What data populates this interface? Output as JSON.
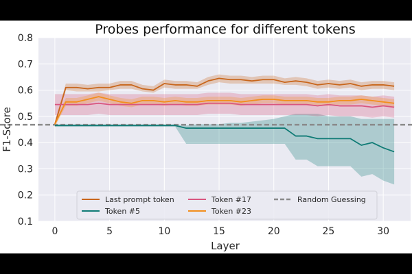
{
  "chart_data": {
    "type": "line",
    "title": "Probes performance for different tokens",
    "xlabel": "Layer",
    "ylabel": "F1-Score",
    "xlim": [
      -1.5,
      32.5
    ],
    "ylim": [
      0.1,
      0.8
    ],
    "xticks": [
      0,
      5,
      10,
      15,
      20,
      25,
      30
    ],
    "yticks": [
      0.1,
      0.2,
      0.3,
      0.4,
      0.5,
      0.6,
      0.7,
      0.8
    ],
    "grid": true,
    "legend_position": "bottom-center",
    "series": [
      {
        "name": "Last prompt token",
        "color": "#c8661c",
        "x": [
          0,
          1,
          2,
          3,
          4,
          5,
          6,
          7,
          8,
          9,
          10,
          11,
          12,
          13,
          14,
          15,
          16,
          17,
          18,
          19,
          20,
          21,
          22,
          23,
          24,
          25,
          26,
          27,
          28,
          29,
          30,
          31
        ],
        "values": [
          0.47,
          0.61,
          0.61,
          0.605,
          0.61,
          0.61,
          0.62,
          0.62,
          0.605,
          0.6,
          0.625,
          0.62,
          0.62,
          0.615,
          0.635,
          0.645,
          0.64,
          0.64,
          0.635,
          0.64,
          0.64,
          0.63,
          0.635,
          0.63,
          0.62,
          0.625,
          0.62,
          0.625,
          0.615,
          0.62,
          0.62,
          0.615
        ],
        "lower": [
          0.46,
          0.6,
          0.595,
          0.595,
          0.595,
          0.6,
          0.605,
          0.605,
          0.595,
          0.59,
          0.61,
          0.605,
          0.605,
          0.605,
          0.62,
          0.63,
          0.625,
          0.625,
          0.625,
          0.625,
          0.625,
          0.62,
          0.62,
          0.615,
          0.605,
          0.61,
          0.605,
          0.61,
          0.6,
          0.605,
          0.605,
          0.6
        ],
        "upper": [
          0.48,
          0.625,
          0.625,
          0.62,
          0.625,
          0.625,
          0.635,
          0.635,
          0.62,
          0.615,
          0.64,
          0.635,
          0.635,
          0.63,
          0.65,
          0.66,
          0.655,
          0.655,
          0.65,
          0.655,
          0.655,
          0.645,
          0.65,
          0.645,
          0.635,
          0.64,
          0.635,
          0.64,
          0.63,
          0.635,
          0.635,
          0.63
        ]
      },
      {
        "name": "Token #5",
        "color": "#0f7b75",
        "x": [
          0,
          1,
          2,
          3,
          4,
          5,
          6,
          7,
          8,
          9,
          10,
          11,
          12,
          13,
          14,
          15,
          16,
          17,
          18,
          19,
          20,
          21,
          22,
          23,
          24,
          25,
          26,
          27,
          28,
          29,
          30,
          31
        ],
        "values": [
          0.465,
          0.465,
          0.465,
          0.465,
          0.465,
          0.465,
          0.465,
          0.465,
          0.465,
          0.465,
          0.465,
          0.465,
          0.455,
          0.455,
          0.455,
          0.455,
          0.455,
          0.455,
          0.455,
          0.455,
          0.455,
          0.455,
          0.425,
          0.425,
          0.415,
          0.415,
          0.415,
          0.415,
          0.39,
          0.4,
          0.38,
          0.365
        ],
        "lower": [
          0.46,
          0.46,
          0.46,
          0.46,
          0.46,
          0.46,
          0.46,
          0.46,
          0.46,
          0.46,
          0.46,
          0.46,
          0.395,
          0.395,
          0.395,
          0.395,
          0.395,
          0.395,
          0.395,
          0.395,
          0.395,
          0.395,
          0.335,
          0.335,
          0.31,
          0.31,
          0.31,
          0.31,
          0.27,
          0.28,
          0.255,
          0.24
        ],
        "upper": [
          0.47,
          0.47,
          0.47,
          0.47,
          0.47,
          0.47,
          0.47,
          0.47,
          0.47,
          0.47,
          0.47,
          0.47,
          0.465,
          0.47,
          0.47,
          0.47,
          0.475,
          0.475,
          0.48,
          0.485,
          0.49,
          0.5,
          0.51,
          0.51,
          0.51,
          0.5,
          0.5,
          0.5,
          0.49,
          0.49,
          0.49,
          0.49
        ]
      },
      {
        "name": "Token #17",
        "color": "#d9557f",
        "x": [
          0,
          1,
          2,
          3,
          4,
          5,
          6,
          7,
          8,
          9,
          10,
          11,
          12,
          13,
          14,
          15,
          16,
          17,
          18,
          19,
          20,
          21,
          22,
          23,
          24,
          25,
          26,
          27,
          28,
          29,
          30,
          31
        ],
        "values": [
          0.545,
          0.545,
          0.545,
          0.545,
          0.55,
          0.545,
          0.545,
          0.545,
          0.545,
          0.545,
          0.545,
          0.545,
          0.545,
          0.545,
          0.55,
          0.55,
          0.55,
          0.545,
          0.545,
          0.545,
          0.545,
          0.545,
          0.545,
          0.545,
          0.54,
          0.545,
          0.54,
          0.54,
          0.54,
          0.535,
          0.54,
          0.535
        ],
        "lower": [
          0.505,
          0.505,
          0.505,
          0.505,
          0.51,
          0.505,
          0.505,
          0.505,
          0.505,
          0.505,
          0.505,
          0.505,
          0.505,
          0.505,
          0.51,
          0.51,
          0.51,
          0.505,
          0.505,
          0.505,
          0.505,
          0.505,
          0.505,
          0.505,
          0.5,
          0.505,
          0.5,
          0.5,
          0.5,
          0.495,
          0.5,
          0.495
        ],
        "upper": [
          0.585,
          0.585,
          0.585,
          0.585,
          0.59,
          0.585,
          0.585,
          0.585,
          0.585,
          0.585,
          0.585,
          0.585,
          0.585,
          0.585,
          0.59,
          0.59,
          0.59,
          0.585,
          0.585,
          0.585,
          0.585,
          0.585,
          0.585,
          0.585,
          0.58,
          0.585,
          0.58,
          0.58,
          0.58,
          0.575,
          0.58,
          0.575
        ]
      },
      {
        "name": "Token #23",
        "color": "#f28e1c",
        "x": [
          0,
          1,
          2,
          3,
          4,
          5,
          6,
          7,
          8,
          9,
          10,
          11,
          12,
          13,
          14,
          15,
          16,
          17,
          18,
          19,
          20,
          21,
          22,
          23,
          24,
          25,
          26,
          27,
          28,
          29,
          30,
          31
        ],
        "values": [
          0.47,
          0.555,
          0.555,
          0.565,
          0.575,
          0.565,
          0.555,
          0.55,
          0.56,
          0.56,
          0.555,
          0.56,
          0.555,
          0.555,
          0.56,
          0.56,
          0.56,
          0.555,
          0.56,
          0.565,
          0.565,
          0.56,
          0.56,
          0.56,
          0.555,
          0.555,
          0.56,
          0.56,
          0.565,
          0.56,
          0.555,
          0.55
        ],
        "lower": [
          0.46,
          0.54,
          0.54,
          0.55,
          0.56,
          0.55,
          0.54,
          0.535,
          0.545,
          0.545,
          0.54,
          0.545,
          0.54,
          0.54,
          0.545,
          0.545,
          0.545,
          0.54,
          0.545,
          0.55,
          0.55,
          0.545,
          0.545,
          0.545,
          0.54,
          0.54,
          0.545,
          0.545,
          0.55,
          0.545,
          0.54,
          0.535
        ],
        "upper": [
          0.48,
          0.57,
          0.57,
          0.58,
          0.59,
          0.58,
          0.57,
          0.565,
          0.575,
          0.575,
          0.57,
          0.575,
          0.57,
          0.57,
          0.575,
          0.575,
          0.575,
          0.57,
          0.575,
          0.58,
          0.58,
          0.575,
          0.575,
          0.575,
          0.57,
          0.57,
          0.575,
          0.575,
          0.58,
          0.575,
          0.57,
          0.565
        ]
      }
    ],
    "reference_line": {
      "name": "Random Guessing",
      "color": "#8a8a8a",
      "y": 0.468
    }
  }
}
